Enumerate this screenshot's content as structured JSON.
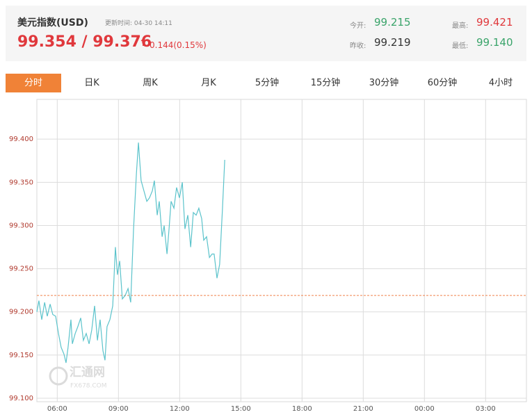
{
  "header": {
    "title": "美元指数(USD)",
    "update_label": "更新时间: 04-30 14:11",
    "price": "99.354 / 99.376",
    "change": "0.144(0.15%)",
    "open_label": "今开:",
    "open": "99.215",
    "prev_close_label": "昨收:",
    "prev_close": "99.219",
    "high_label": "最高:",
    "high": "99.421",
    "low_label": "最低:",
    "low": "99.140"
  },
  "tabs": [
    "分时",
    "日K",
    "周K",
    "月K",
    "5分钟",
    "15分钟",
    "30分钟",
    "60分钟",
    "4小时"
  ],
  "watermark": {
    "name": "汇通网",
    "site": "FX678.COM"
  },
  "chart_data": {
    "type": "line",
    "color": "#5bc3cb",
    "grid": true,
    "reference_line": 99.219,
    "reference_color": "#f0804a",
    "xlim": [
      5,
      29
    ],
    "xticks": [
      {
        "value": 6,
        "label": "06:00"
      },
      {
        "value": 9,
        "label": "09:00"
      },
      {
        "value": 12,
        "label": "12:00"
      },
      {
        "value": 15,
        "label": "15:00"
      },
      {
        "value": 18,
        "label": "18:00"
      },
      {
        "value": 21,
        "label": "21:00"
      },
      {
        "value": 24,
        "label": "00:00"
      },
      {
        "value": 27,
        "label": "03:00"
      }
    ],
    "ylim": [
      99.096,
      99.446
    ],
    "yticks": [
      {
        "value": 99.1,
        "label": "99.100"
      },
      {
        "value": 99.15,
        "label": "99.150"
      },
      {
        "value": 99.2,
        "label": "99.200"
      },
      {
        "value": 99.25,
        "label": "99.250"
      },
      {
        "value": 99.3,
        "label": "99.300"
      },
      {
        "value": 99.35,
        "label": "99.350"
      },
      {
        "value": 99.4,
        "label": "99.400"
      }
    ],
    "x": [
      5.0,
      5.1,
      5.24,
      5.38,
      5.51,
      5.65,
      5.78,
      5.92,
      6.06,
      6.19,
      6.33,
      6.43,
      6.53,
      6.67,
      6.74,
      6.88,
      7.01,
      7.15,
      7.28,
      7.42,
      7.56,
      7.69,
      7.83,
      7.97,
      8.1,
      8.24,
      8.34,
      8.44,
      8.58,
      8.72,
      8.85,
      8.95,
      9.06,
      9.19,
      9.33,
      9.47,
      9.6,
      9.74,
      9.88,
      9.98,
      10.11,
      10.25,
      10.39,
      10.52,
      10.66,
      10.76,
      10.9,
      11.0,
      11.14,
      11.24,
      11.38,
      11.48,
      11.58,
      11.72,
      11.85,
      11.99,
      12.13,
      12.26,
      12.4,
      12.54,
      12.67,
      12.81,
      12.94,
      13.08,
      13.18,
      13.32,
      13.46,
      13.59,
      13.69,
      13.83,
      13.96,
      14.1,
      14.21
    ],
    "values": [
      99.2,
      99.213,
      99.191,
      99.211,
      99.195,
      99.209,
      99.197,
      99.195,
      99.175,
      99.159,
      99.151,
      99.141,
      99.159,
      99.191,
      99.163,
      99.175,
      99.183,
      99.193,
      99.167,
      99.175,
      99.163,
      99.179,
      99.207,
      99.167,
      99.191,
      99.155,
      99.144,
      99.183,
      99.191,
      99.207,
      99.275,
      99.243,
      99.259,
      99.215,
      99.219,
      99.227,
      99.211,
      99.296,
      99.36,
      99.396,
      99.352,
      99.34,
      99.328,
      99.332,
      99.34,
      99.352,
      99.312,
      99.328,
      99.287,
      99.3,
      99.267,
      99.296,
      99.328,
      99.32,
      99.344,
      99.332,
      99.35,
      99.296,
      99.312,
      99.275,
      99.315,
      99.312,
      99.32,
      99.308,
      99.283,
      99.287,
      99.263,
      99.267,
      99.267,
      99.239,
      99.255,
      99.32,
      99.376
    ]
  }
}
